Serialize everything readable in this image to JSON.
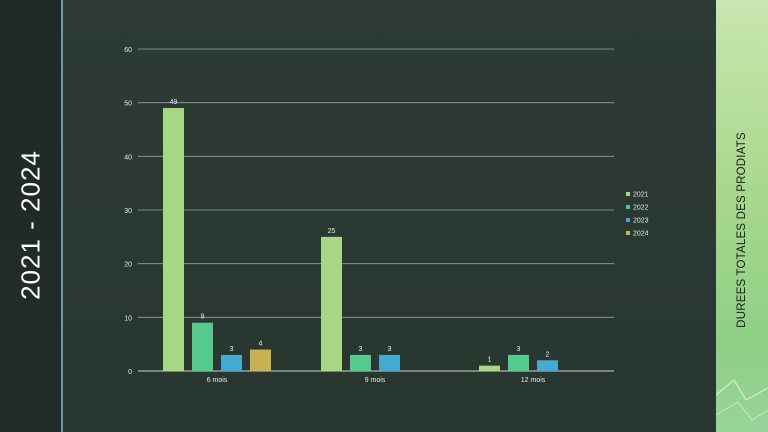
{
  "slide": {
    "left_title": "2021 - 2024",
    "right_title": "DUREES TOTALES DES PRODIATS"
  },
  "colors": {
    "2021": "#a6d785",
    "2022": "#56c98f",
    "2023": "#46a9d3",
    "2024": "#c8b253"
  },
  "chart_data": {
    "type": "bar",
    "categories": [
      "6 mois",
      "9 mois",
      "12 mois"
    ],
    "series": [
      {
        "name": "2021",
        "values": [
          49,
          25,
          1
        ]
      },
      {
        "name": "2022",
        "values": [
          9,
          3,
          3
        ]
      },
      {
        "name": "2023",
        "values": [
          3,
          3,
          2
        ]
      },
      {
        "name": "2024",
        "values": [
          4,
          null,
          null
        ]
      }
    ],
    "ylim": [
      0,
      60
    ],
    "yticks": [
      0,
      10,
      20,
      30,
      40,
      50,
      60
    ],
    "grid": true,
    "legend": "right",
    "data_labels": true
  }
}
